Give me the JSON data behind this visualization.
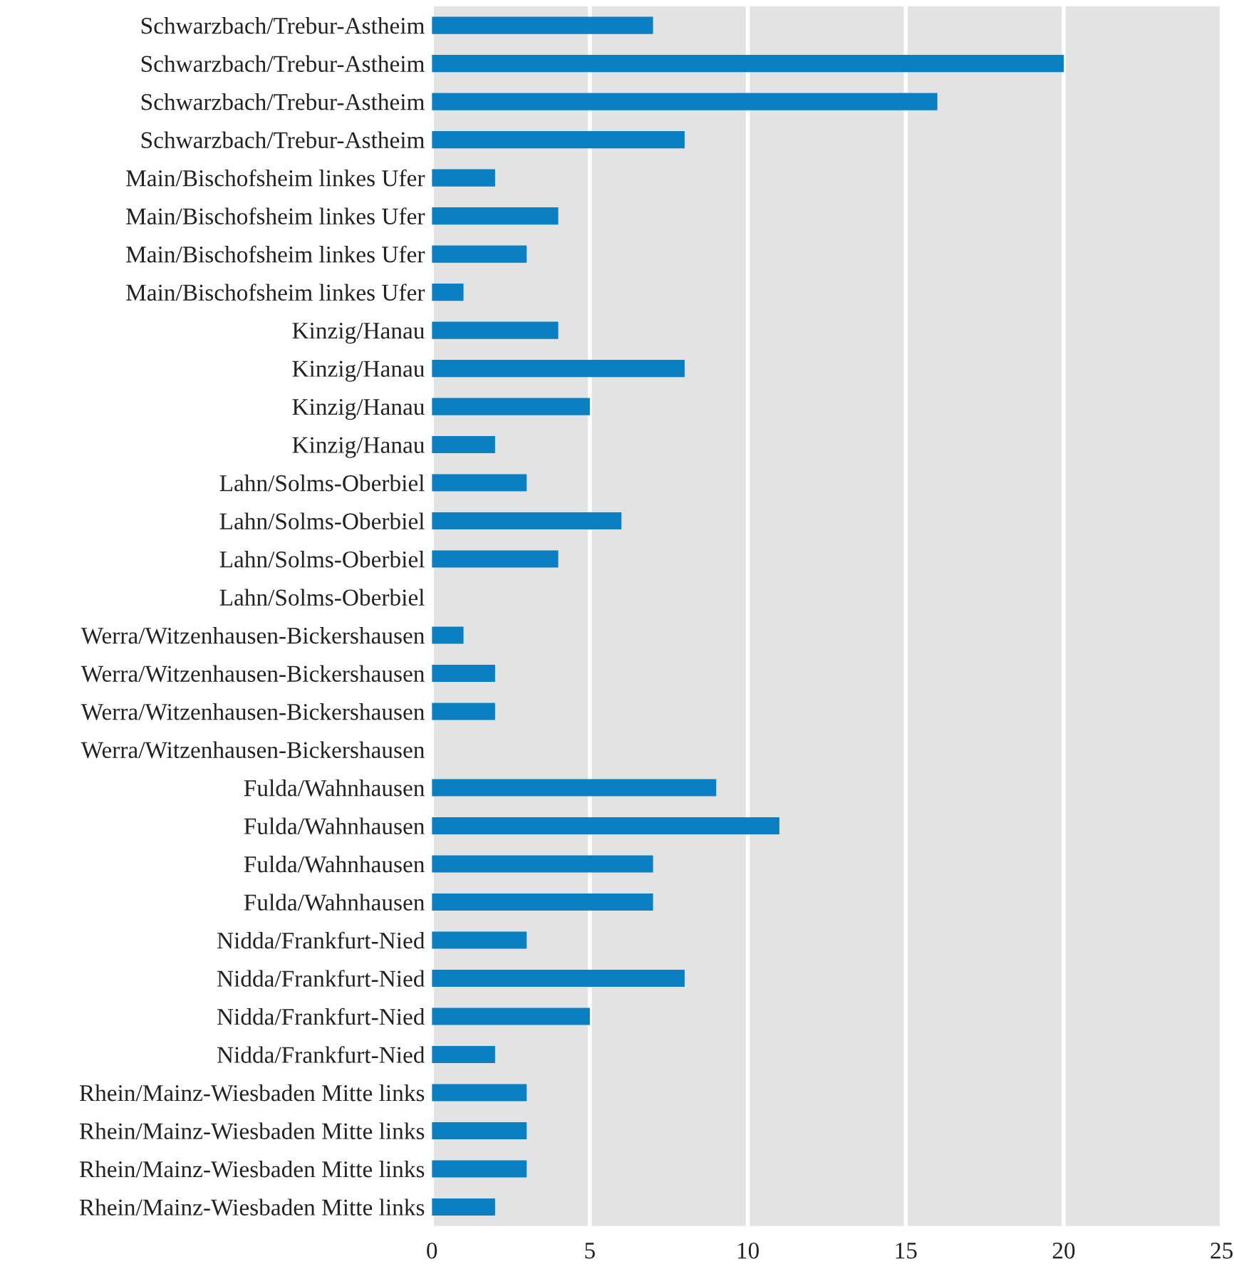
{
  "chart_data": {
    "type": "bar",
    "orientation": "horizontal",
    "categories": [
      "Schwarzbach/Trebur-Astheim",
      "Schwarzbach/Trebur-Astheim",
      "Schwarzbach/Trebur-Astheim",
      "Schwarzbach/Trebur-Astheim",
      "Main/Bischofsheim linkes Ufer",
      "Main/Bischofsheim linkes Ufer",
      "Main/Bischofsheim linkes Ufer",
      "Main/Bischofsheim linkes Ufer",
      "Kinzig/Hanau",
      "Kinzig/Hanau",
      "Kinzig/Hanau",
      "Kinzig/Hanau",
      "Lahn/Solms-Oberbiel",
      "Lahn/Solms-Oberbiel",
      "Lahn/Solms-Oberbiel",
      "Lahn/Solms-Oberbiel",
      "Werra/Witzenhausen-Bickershausen",
      "Werra/Witzenhausen-Bickershausen",
      "Werra/Witzenhausen-Bickershausen",
      "Werra/Witzenhausen-Bickershausen",
      "Fulda/Wahnhausen",
      "Fulda/Wahnhausen",
      "Fulda/Wahnhausen",
      "Fulda/Wahnhausen",
      "Nidda/Frankfurt-Nied",
      "Nidda/Frankfurt-Nied",
      "Nidda/Frankfurt-Nied",
      "Nidda/Frankfurt-Nied",
      "Rhein/Mainz-Wiesbaden Mitte links",
      "Rhein/Mainz-Wiesbaden Mitte links",
      "Rhein/Mainz-Wiesbaden Mitte links",
      "Rhein/Mainz-Wiesbaden Mitte links"
    ],
    "series": [
      {
        "color": "#0a7fc2",
        "values": [
          7,
          20,
          16,
          8,
          2,
          4,
          3,
          1,
          4,
          8,
          5,
          2,
          3,
          6,
          4,
          0,
          1,
          2,
          2,
          0,
          9,
          11,
          7,
          7,
          3,
          8,
          5,
          2,
          3,
          3,
          3,
          2
        ]
      }
    ],
    "xlim": [
      0,
      25
    ],
    "xticks": [
      0,
      5,
      10,
      15,
      20,
      25
    ],
    "grid": "x"
  }
}
